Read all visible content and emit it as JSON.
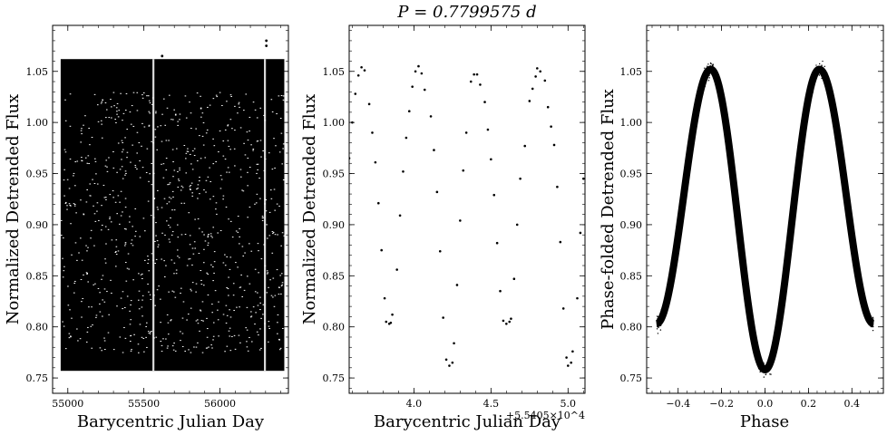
{
  "chart_data": [
    {
      "type": "scatter",
      "name": "light-curve-full",
      "xlabel": "Barycentric Julian Day",
      "ylabel": "Normalized Detrended Flux",
      "xlim": [
        54900,
        56450
      ],
      "ylim": [
        0.735,
        1.095
      ],
      "xticks": [
        55000,
        55500,
        56000
      ],
      "xtick_labels": [
        "55000",
        "55500",
        "56000"
      ],
      "yticks": [
        0.75,
        0.8,
        0.85,
        0.9,
        0.95,
        1.0,
        1.05
      ],
      "ytick_labels": [
        "0.75",
        "0.80",
        "0.85",
        "0.90",
        "0.95",
        "1.00",
        "1.05"
      ],
      "data_span": [
        54953,
        56423
      ],
      "flux_range": [
        0.757,
        1.062
      ],
      "gaps": [
        55562,
        56295
      ],
      "outliers": [
        {
          "x": 56305,
          "y": 1.075
        },
        {
          "x": 56305,
          "y": 1.08
        },
        {
          "x": 55620,
          "y": 1.065
        }
      ],
      "marker_color": "#000000"
    },
    {
      "type": "scatter",
      "name": "light-curve-zoom",
      "title": "P = 0.7799575 d",
      "xlabel": "Barycentric Julian Day",
      "ylabel": "Normalized Detrended Flux",
      "offset_text": "+5.5405×10^4",
      "xlim": [
        3.58,
        5.11
      ],
      "ylim": [
        0.735,
        1.095
      ],
      "xticks": [
        4.0,
        4.5,
        5.0
      ],
      "xtick_labels": [
        "4.0",
        "4.5",
        "5.0"
      ],
      "yticks": [
        0.75,
        0.8,
        0.85,
        0.9,
        0.95,
        1.0,
        1.05
      ],
      "ytick_labels": [
        "0.75",
        "0.80",
        "0.85",
        "0.90",
        "0.95",
        "1.00",
        "1.05"
      ],
      "period": 0.7799575,
      "points": [
        [
          3.58,
          0.965
        ],
        [
          3.6,
          1.0
        ],
        [
          3.62,
          1.028
        ],
        [
          3.64,
          1.046
        ],
        [
          3.66,
          1.054
        ],
        [
          3.68,
          1.051
        ],
        [
          3.71,
          1.018
        ],
        [
          3.73,
          0.99
        ],
        [
          3.75,
          0.961
        ],
        [
          3.77,
          0.921
        ],
        [
          3.79,
          0.875
        ],
        [
          3.81,
          0.828
        ],
        [
          3.82,
          0.805
        ],
        [
          3.84,
          0.803
        ],
        [
          3.85,
          0.804
        ],
        [
          3.86,
          0.812
        ],
        [
          3.89,
          0.856
        ],
        [
          3.91,
          0.909
        ],
        [
          3.93,
          0.952
        ],
        [
          3.95,
          0.985
        ],
        [
          3.97,
          1.011
        ],
        [
          3.99,
          1.035
        ],
        [
          4.01,
          1.05
        ],
        [
          4.03,
          1.055
        ],
        [
          4.05,
          1.048
        ],
        [
          4.07,
          1.032
        ],
        [
          4.11,
          1.006
        ],
        [
          4.13,
          0.973
        ],
        [
          4.15,
          0.932
        ],
        [
          4.17,
          0.874
        ],
        [
          4.19,
          0.809
        ],
        [
          4.21,
          0.768
        ],
        [
          4.23,
          0.762
        ],
        [
          4.25,
          0.765
        ],
        [
          4.26,
          0.784
        ],
        [
          4.28,
          0.841
        ],
        [
          4.3,
          0.904
        ],
        [
          4.32,
          0.953
        ],
        [
          4.34,
          0.99
        ],
        [
          4.37,
          1.04
        ],
        [
          4.39,
          1.047
        ],
        [
          4.41,
          1.047
        ],
        [
          4.43,
          1.037
        ],
        [
          4.46,
          1.02
        ],
        [
          4.48,
          0.993
        ],
        [
          4.5,
          0.964
        ],
        [
          4.52,
          0.929
        ],
        [
          4.54,
          0.882
        ],
        [
          4.56,
          0.835
        ],
        [
          4.58,
          0.806
        ],
        [
          4.6,
          0.803
        ],
        [
          4.62,
          0.805
        ],
        [
          4.63,
          0.808
        ],
        [
          4.65,
          0.847
        ],
        [
          4.67,
          0.9
        ],
        [
          4.69,
          0.945
        ],
        [
          4.72,
          0.977
        ],
        [
          4.75,
          1.021
        ],
        [
          4.77,
          1.033
        ],
        [
          4.79,
          1.045
        ],
        [
          4.8,
          1.053
        ],
        [
          4.82,
          1.05
        ],
        [
          4.85,
          1.041
        ],
        [
          4.87,
          1.015
        ],
        [
          4.89,
          0.996
        ],
        [
          4.91,
          0.978
        ],
        [
          4.93,
          0.937
        ],
        [
          4.95,
          0.883
        ],
        [
          4.97,
          0.818
        ],
        [
          4.99,
          0.77
        ],
        [
          5.0,
          0.762
        ],
        [
          5.02,
          0.765
        ],
        [
          5.03,
          0.776
        ],
        [
          5.06,
          0.828
        ],
        [
          5.08,
          0.892
        ],
        [
          5.1,
          0.945
        ]
      ],
      "marker_color": "#000000"
    },
    {
      "type": "scatter",
      "name": "phase-folded",
      "xlabel": "Phase",
      "ylabel": "Phase-folded Detrended Flux",
      "xlim": [
        -0.545,
        0.545
      ],
      "ylim": [
        0.735,
        1.095
      ],
      "xticks": [
        -0.4,
        -0.2,
        0.0,
        0.2,
        0.4
      ],
      "xtick_labels": [
        "−0.4",
        "−0.2",
        "0.0",
        "0.2",
        "0.4"
      ],
      "yticks": [
        0.75,
        0.8,
        0.85,
        0.9,
        0.95,
        1.0,
        1.05
      ],
      "ytick_labels": [
        "0.75",
        "0.80",
        "0.85",
        "0.90",
        "0.95",
        "1.00",
        "1.05"
      ],
      "phase_range": [
        -0.5,
        0.5
      ],
      "max_flux": 1.052,
      "min_flux_primary": 0.758,
      "min_flux_secondary": 0.803,
      "marker_color": "#000000"
    }
  ]
}
